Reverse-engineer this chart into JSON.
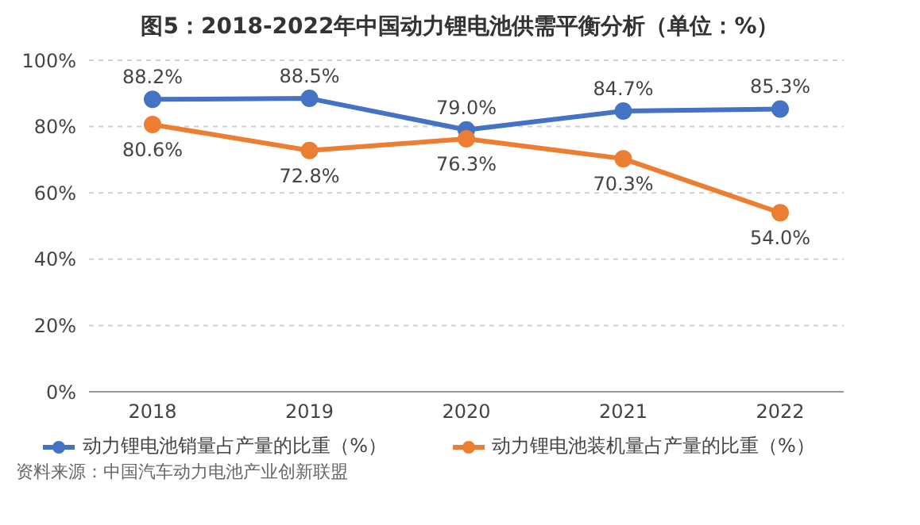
{
  "chart_data": {
    "type": "line",
    "title": "图5：2018-2022年中国动力锂电池供需平衡分析（单位：%）",
    "categories": [
      "2018",
      "2019",
      "2020",
      "2021",
      "2022"
    ],
    "series": [
      {
        "name": "动力锂电池销量占产量的比重（%）",
        "color": "#4472c4",
        "values": [
          88.2,
          88.5,
          79.0,
          84.7,
          85.3
        ],
        "value_labels": [
          "88.2%",
          "88.5%",
          "79.0%",
          "84.7%",
          "85.3%"
        ]
      },
      {
        "name": "动力锂电池装机量占产量的比重（%）",
        "color": "#ed7d31",
        "values": [
          80.6,
          72.8,
          76.3,
          70.3,
          54.0
        ],
        "value_labels": [
          "80.6%",
          "72.8%",
          "76.3%",
          "70.3%",
          "54.0%"
        ]
      }
    ],
    "ylim": [
      0,
      100
    ],
    "yticks": [
      {
        "value": 0,
        "label": "0%"
      },
      {
        "value": 20,
        "label": "20%"
      },
      {
        "value": 40,
        "label": "40%"
      },
      {
        "value": 60,
        "label": "60%"
      },
      {
        "value": 80,
        "label": "80%"
      },
      {
        "value": 100,
        "label": "100%"
      }
    ],
    "grid": "y",
    "legend": "bottom",
    "marker": "circle",
    "line_style": "solid",
    "annotations": [
      "资料来源：中国汽车动力电池产业创新联盟"
    ]
  }
}
